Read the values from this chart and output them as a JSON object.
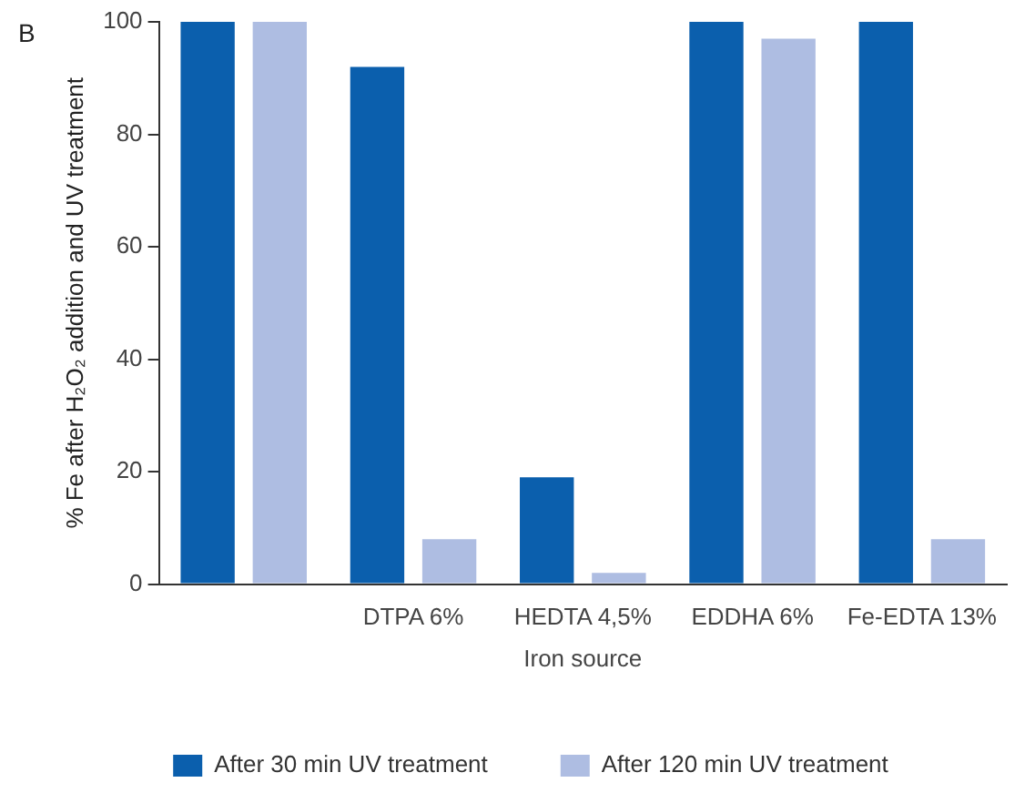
{
  "chart_data": {
    "type": "bar",
    "xlabel": "Iron source",
    "ylabel": "% Fe after H₂O₂ addition and UV treatment",
    "annotations": [
      "B"
    ],
    "categories": [
      null,
      "DTPA 6%",
      "HEDTA 4,5%",
      "EDDHA 6%",
      "Fe-EDTA 13%"
    ],
    "series": [
      {
        "name": "After 30 min UV treatment",
        "color": "#0b5fad",
        "values": [
          100,
          92,
          19,
          100,
          100
        ]
      },
      {
        "name": "After 120 min UV treatment",
        "color": "#aebde2",
        "values": [
          100,
          8,
          2,
          97,
          8
        ]
      }
    ],
    "ylim": [
      0,
      100
    ],
    "yticks": [
      0,
      20,
      40,
      60,
      80,
      100
    ],
    "grid": false,
    "legend": "bottom"
  }
}
